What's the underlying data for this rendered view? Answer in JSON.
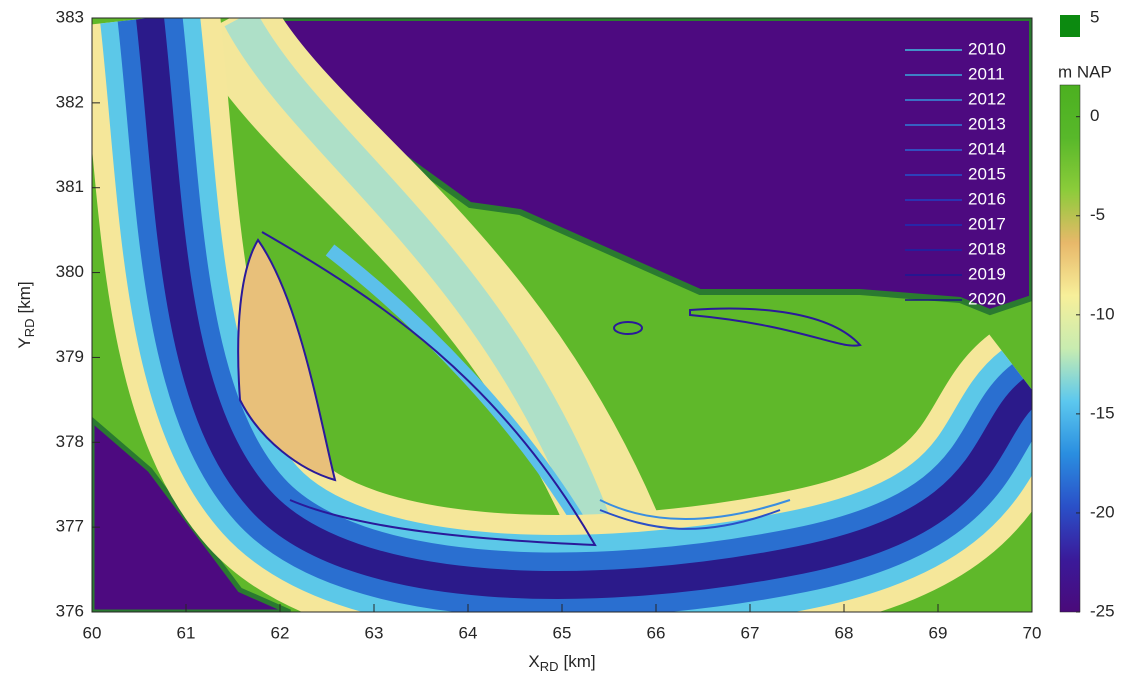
{
  "chart_data": {
    "type": "map",
    "xlabel": [
      "X",
      "RD",
      "[km]"
    ],
    "ylabel": [
      "Y",
      "RD",
      "[km]"
    ],
    "xlim": [
      60,
      70
    ],
    "xticks": [
      60,
      61,
      62,
      63,
      64,
      65,
      66,
      67,
      68,
      69,
      70
    ],
    "ylim": [
      376,
      383
    ],
    "yticks": [
      376,
      377,
      378,
      379,
      380,
      381,
      382,
      383
    ],
    "series": [
      {
        "name": "2010",
        "color": "#3fc0e0"
      },
      {
        "name": "2011",
        "color": "#3aa8de"
      },
      {
        "name": "2012",
        "color": "#3592dc"
      },
      {
        "name": "2013",
        "color": "#307cd8"
      },
      {
        "name": "2014",
        "color": "#2a66d4"
      },
      {
        "name": "2015",
        "color": "#2552cc"
      },
      {
        "name": "2016",
        "color": "#203fc2"
      },
      {
        "name": "2017",
        "color": "#1c2fb5"
      },
      {
        "name": "2018",
        "color": "#1a24a5"
      },
      {
        "name": "2019",
        "color": "#1a1b95"
      },
      {
        "name": "2020",
        "color": "#1b1585"
      }
    ],
    "colorbar": {
      "label": "m NAP",
      "lim": [
        -25,
        1.6
      ],
      "ticks": [
        -25,
        -20,
        -15,
        -10,
        -5,
        0
      ],
      "colormap": [
        "#4a0a7a",
        "#3a1a9a",
        "#2a50c8",
        "#2a8ee0",
        "#5cc8ee",
        "#c8ecb0",
        "#f7ef9a",
        "#e8b86a",
        "#8ccc3a",
        "#58b82a",
        "#4cb020"
      ],
      "above": {
        "value": 5,
        "color": "#0c8a10"
      }
    }
  }
}
